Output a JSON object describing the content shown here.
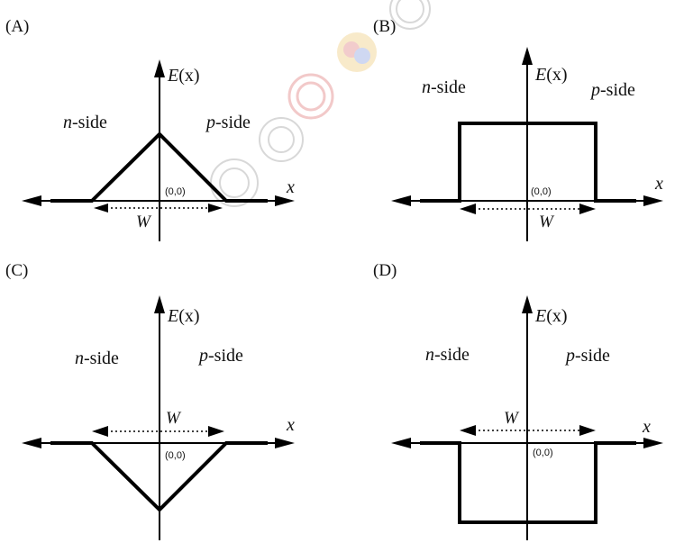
{
  "panels": [
    {
      "id": "A",
      "label": "(A)",
      "n_side": "n",
      "p_side": "p",
      "side_suffix": "-side",
      "y_axis_var": "E",
      "y_axis_arg": "(x)",
      "x_axis_label": "x",
      "origin": "(0,0)",
      "width_symbol": "W",
      "profile": "triangle-up"
    },
    {
      "id": "B",
      "label": "(B)",
      "n_side": "n",
      "p_side": "p",
      "side_suffix": "-side",
      "y_axis_var": "E",
      "y_axis_arg": "(x)",
      "x_axis_label": "x",
      "origin": "(0,0)",
      "width_symbol": "W",
      "profile": "rectangle-up"
    },
    {
      "id": "C",
      "label": "(C)",
      "n_side": "n",
      "p_side": "p",
      "side_suffix": "-side",
      "y_axis_var": "E",
      "y_axis_arg": "(x)",
      "x_axis_label": "x",
      "origin": "(0,0)",
      "width_symbol": "W",
      "profile": "triangle-down"
    },
    {
      "id": "D",
      "label": "(D)",
      "n_side": "n",
      "p_side": "p",
      "side_suffix": "-side",
      "y_axis_var": "E",
      "y_axis_arg": "(x)",
      "x_axis_label": "x",
      "origin": "(0,0)",
      "width_symbol": "W",
      "profile": "rectangle-down"
    }
  ]
}
